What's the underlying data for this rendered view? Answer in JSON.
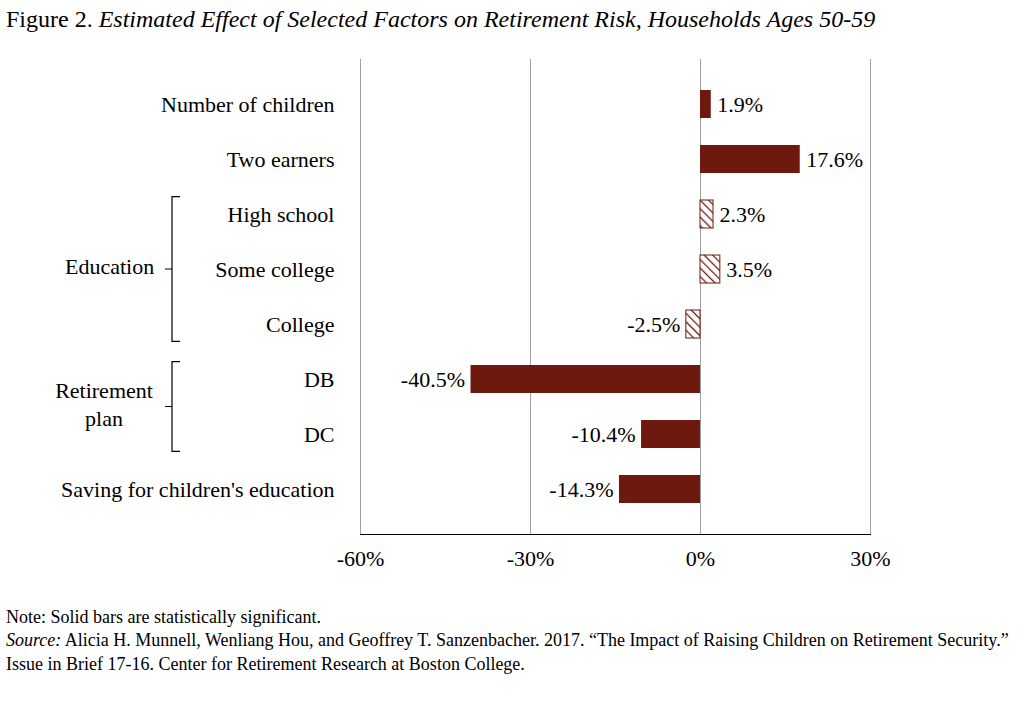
{
  "chart_data": {
    "type": "bar",
    "title": "Figure 2. Estimated Effect of Selected Factors on Retirement Risk, Households Ages 50-59",
    "orientation": "horizontal",
    "categories": [
      "Number of children",
      "Two earners",
      "High school",
      "Some college",
      "College",
      "DB",
      "DC",
      "Saving for children's education"
    ],
    "values": [
      1.9,
      17.6,
      2.3,
      3.5,
      -2.5,
      -40.5,
      -10.4,
      -14.3
    ],
    "value_labels": [
      "1.9%",
      "17.6%",
      "2.3%",
      "3.5%",
      "-2.5%",
      "-40.5%",
      "-10.4%",
      "-14.3%"
    ],
    "significant": [
      true,
      true,
      false,
      false,
      false,
      true,
      true,
      true
    ],
    "groups": [
      {
        "label": "Education",
        "categories": [
          "High school",
          "Some college",
          "College"
        ]
      },
      {
        "label": "Retirement plan",
        "categories": [
          "DB",
          "DC"
        ]
      }
    ],
    "color": "#6e190e",
    "xlim": [
      -60,
      30
    ],
    "xticks": [
      {
        "value": -60,
        "label": "-60%"
      },
      {
        "value": -30,
        "label": "-30%"
      },
      {
        "value": 0,
        "label": "0%"
      },
      {
        "value": 30,
        "label": "30%"
      }
    ],
    "grid": true,
    "data_labels": true,
    "note": "Note: Solid bars are statistically significant.",
    "source": "Source: Alicia H. Munnell, Wenliang Hou, and Geoffrey T. Sanzenbacher. 2017. “The Impact of Raising Children on Retirement Security.” Issue in Brief 17-16. Center for Retirement Research at Boston College."
  }
}
